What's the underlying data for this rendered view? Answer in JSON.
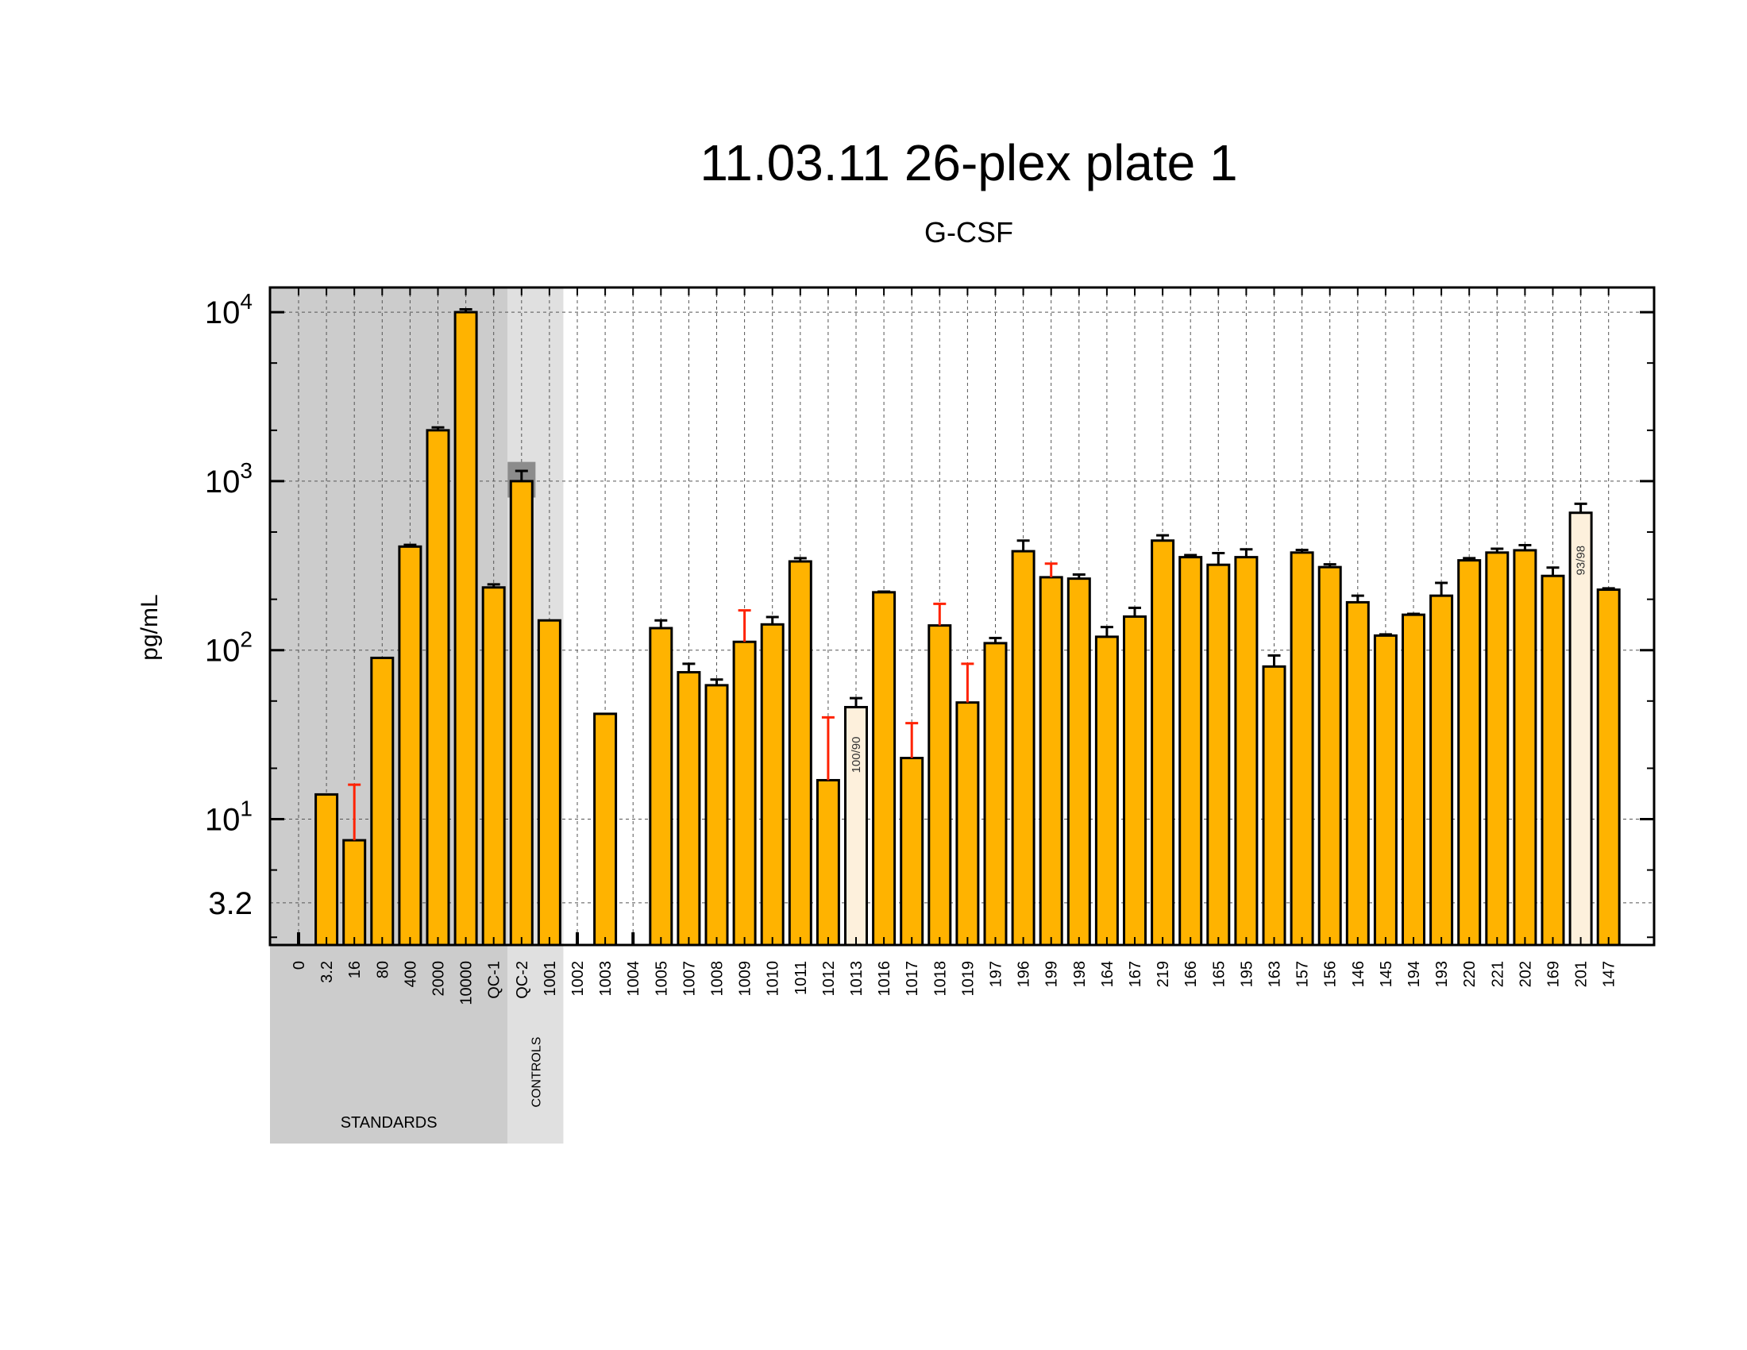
{
  "chart_data": {
    "type": "bar",
    "title": "11.03.11 26-plex plate 1",
    "subtitle": "G-CSF",
    "xlabel": "",
    "ylabel": "pg/mL",
    "y_scale": "log",
    "ylim": [
      1.8,
      14000
    ],
    "grid": true,
    "y_tick_labels": [
      {
        "value": 3.2,
        "label": "3.2"
      },
      {
        "value": 10,
        "label": "10",
        "exp": "1"
      },
      {
        "value": 100,
        "label": "10",
        "exp": "2"
      },
      {
        "value": 1000,
        "label": "10",
        "exp": "3"
      },
      {
        "value": 10000,
        "label": "10",
        "exp": "4"
      }
    ],
    "groups": [
      {
        "label": "STANDARDS",
        "first": 0,
        "last": 7,
        "shade": "#cccccc"
      },
      {
        "label": "CONTROLS",
        "first": 8,
        "last": 9,
        "shade": "#e0e0e0"
      }
    ],
    "colors": {
      "bar": "#ffb300",
      "flagged_bar": "#fdf0dc",
      "error_ok": "#000000",
      "error_high": "#ff2200",
      "qc_range": "#8c8c8c"
    },
    "qc_expected_range": {
      "category": "QC-2",
      "low": 800,
      "high": 1300
    },
    "categories": [
      "0",
      "3.2",
      "16",
      "80",
      "400",
      "2000",
      "10000",
      "QC-1",
      "QC-2",
      "1001",
      "1002",
      "1003",
      "1004",
      "1005",
      "1007",
      "1008",
      "1009",
      "1010",
      "1011",
      "1012",
      "1013",
      "1016",
      "1017",
      "1018",
      "1019",
      "197",
      "196",
      "199",
      "198",
      "164",
      "167",
      "219",
      "166",
      "165",
      "195",
      "163",
      "157",
      "156",
      "146",
      "145",
      "194",
      "193",
      "220",
      "221",
      "202",
      "169",
      "201",
      "147"
    ],
    "series": [
      {
        "values": [
          null,
          14,
          7.5,
          90,
          410,
          2000,
          10000,
          235,
          1000,
          150,
          null,
          42,
          null,
          135,
          74,
          62,
          112,
          142,
          335,
          17,
          46,
          220,
          23,
          140,
          49,
          110,
          385,
          270,
          265,
          120,
          158,
          445,
          355,
          320,
          355,
          80,
          378,
          310,
          192,
          122,
          162,
          210,
          340,
          378,
          390,
          275,
          650,
          228
        ],
        "error_upper": [
          null,
          null,
          16,
          null,
          420,
          2080,
          10400,
          245,
          1150,
          null,
          null,
          null,
          null,
          150,
          83,
          67,
          172,
          157,
          350,
          40,
          52,
          222,
          37,
          188,
          83,
          118,
          445,
          325,
          280,
          137,
          178,
          478,
          365,
          375,
          395,
          93,
          392,
          322,
          210,
          124,
          164,
          250,
          350,
          398,
          418,
          308,
          735,
          232
        ],
        "error_color": [
          "",
          "",
          "high",
          "",
          "ok",
          "ok",
          "ok",
          "ok",
          "ok",
          "",
          "",
          "",
          "",
          "ok",
          "ok",
          "ok",
          "high",
          "ok",
          "ok",
          "high",
          "ok",
          "ok",
          "high",
          "high",
          "high",
          "ok",
          "ok",
          "high",
          "ok",
          "ok",
          "ok",
          "ok",
          "ok",
          "ok",
          "ok",
          "ok",
          "ok",
          "ok",
          "ok",
          "ok",
          "ok",
          "ok",
          "ok",
          "ok",
          "ok",
          "ok",
          "ok",
          "ok"
        ],
        "annotations": [
          {
            "category": "1013",
            "text": "100/90"
          },
          {
            "category": "201",
            "text": "93/98"
          }
        ]
      }
    ]
  }
}
